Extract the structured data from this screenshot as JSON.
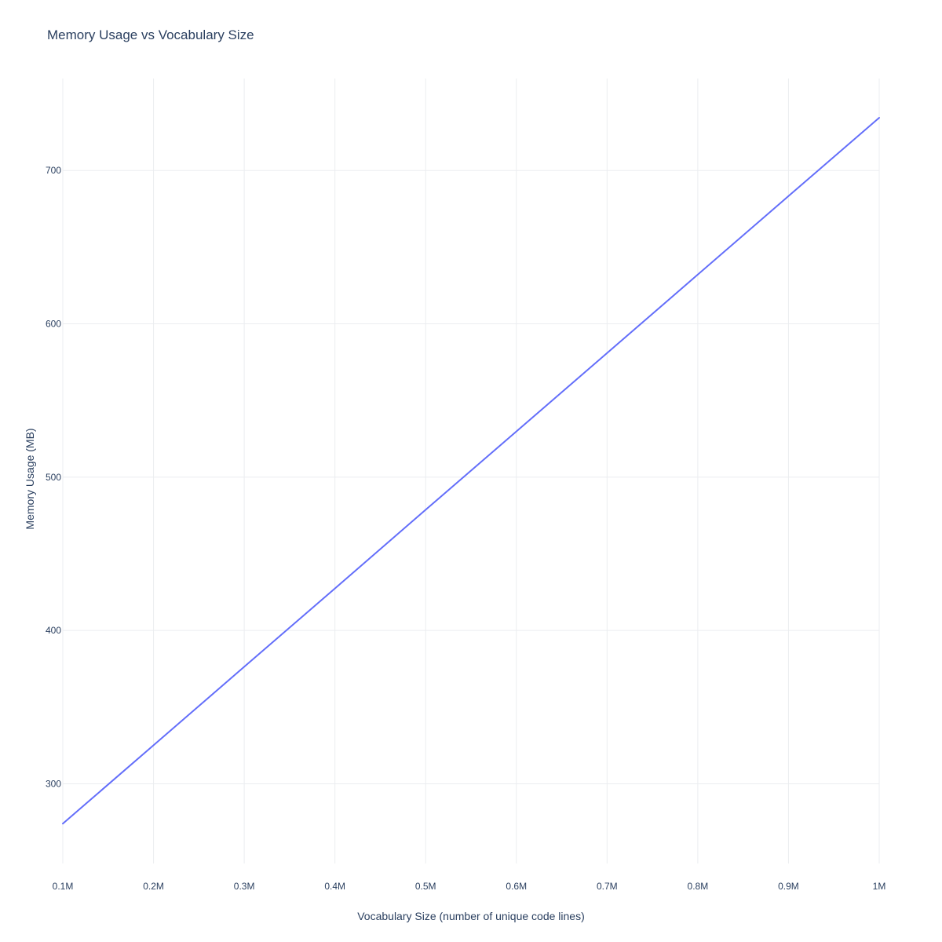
{
  "chart_data": {
    "type": "line",
    "title": "Memory Usage vs Vocabulary Size",
    "xlabel": "Vocabulary Size (number of unique code lines)",
    "ylabel": "Memory Usage (MB)",
    "x": [
      100000,
      200000,
      300000,
      400000,
      500000,
      600000,
      700000,
      800000,
      900000,
      1000000
    ],
    "series": [
      {
        "name": "",
        "color": "#636efa",
        "values": [
          274,
          325.1,
          376.3,
          427.4,
          478.7,
          529.8,
          580.9,
          632.1,
          683.3,
          734.4
        ]
      }
    ],
    "xlim": [
      100000,
      1000000
    ],
    "ylim": [
      248,
      760
    ],
    "x_ticks": [
      100000,
      200000,
      300000,
      400000,
      500000,
      600000,
      700000,
      800000,
      900000,
      1000000
    ],
    "x_tick_labels": [
      "0.1M",
      "0.2M",
      "0.3M",
      "0.4M",
      "0.5M",
      "0.6M",
      "0.7M",
      "0.8M",
      "0.9M",
      "1M"
    ],
    "y_ticks": [
      300,
      400,
      500,
      600,
      700
    ],
    "y_tick_labels": [
      "300",
      "400",
      "500",
      "600",
      "700"
    ],
    "grid": true,
    "legend": "none"
  }
}
